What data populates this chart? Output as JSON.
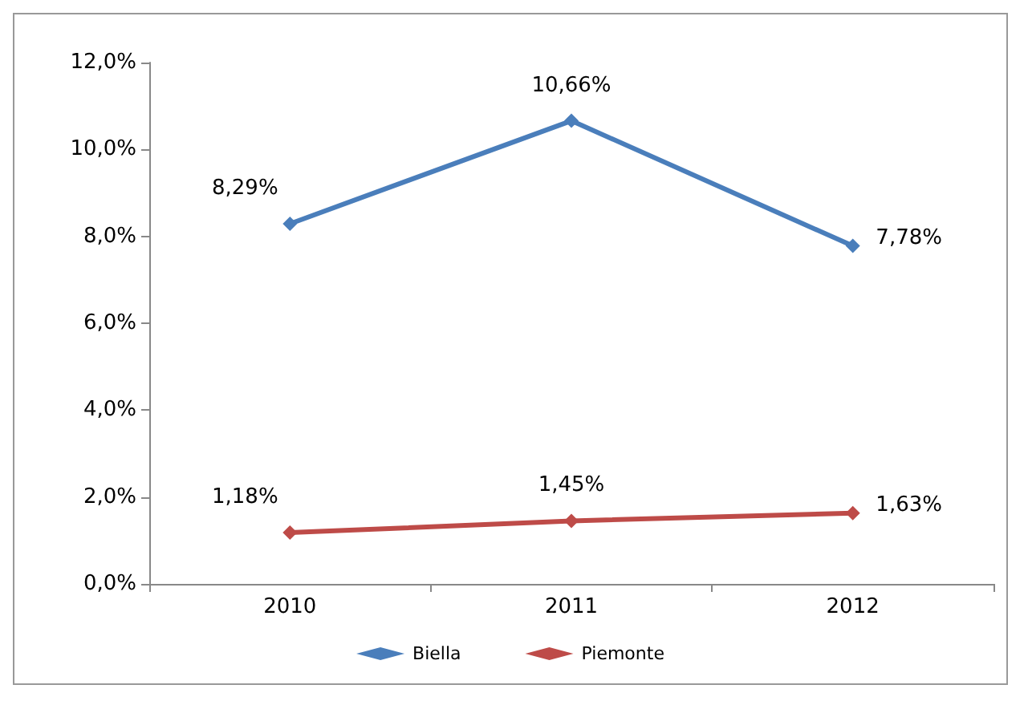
{
  "chart_data": {
    "type": "line",
    "categories": [
      "2010",
      "2011",
      "2012"
    ],
    "series": [
      {
        "name": "Biella",
        "color": "#4a7ebb",
        "values": [
          8.29,
          10.66,
          7.78
        ],
        "value_labels": [
          "8,29%",
          "10,66%",
          "7,78%"
        ]
      },
      {
        "name": "Piemonte",
        "color": "#be4b48",
        "values": [
          1.18,
          1.45,
          1.63
        ],
        "value_labels": [
          "1,18%",
          "1,45%",
          "1,63%"
        ]
      }
    ],
    "ylim": [
      0,
      12
    ],
    "yticks": [
      {
        "value": 0,
        "label": "0,0%"
      },
      {
        "value": 2,
        "label": "2,0%"
      },
      {
        "value": 4,
        "label": "4,0%"
      },
      {
        "value": 6,
        "label": "6,0%"
      },
      {
        "value": 8,
        "label": "8,0%"
      },
      {
        "value": 10,
        "label": "10,0%"
      },
      {
        "value": 12,
        "label": "12,0%"
      }
    ],
    "grid": false,
    "legend": "bottom",
    "marker": "diamond",
    "line_style": "solid"
  }
}
